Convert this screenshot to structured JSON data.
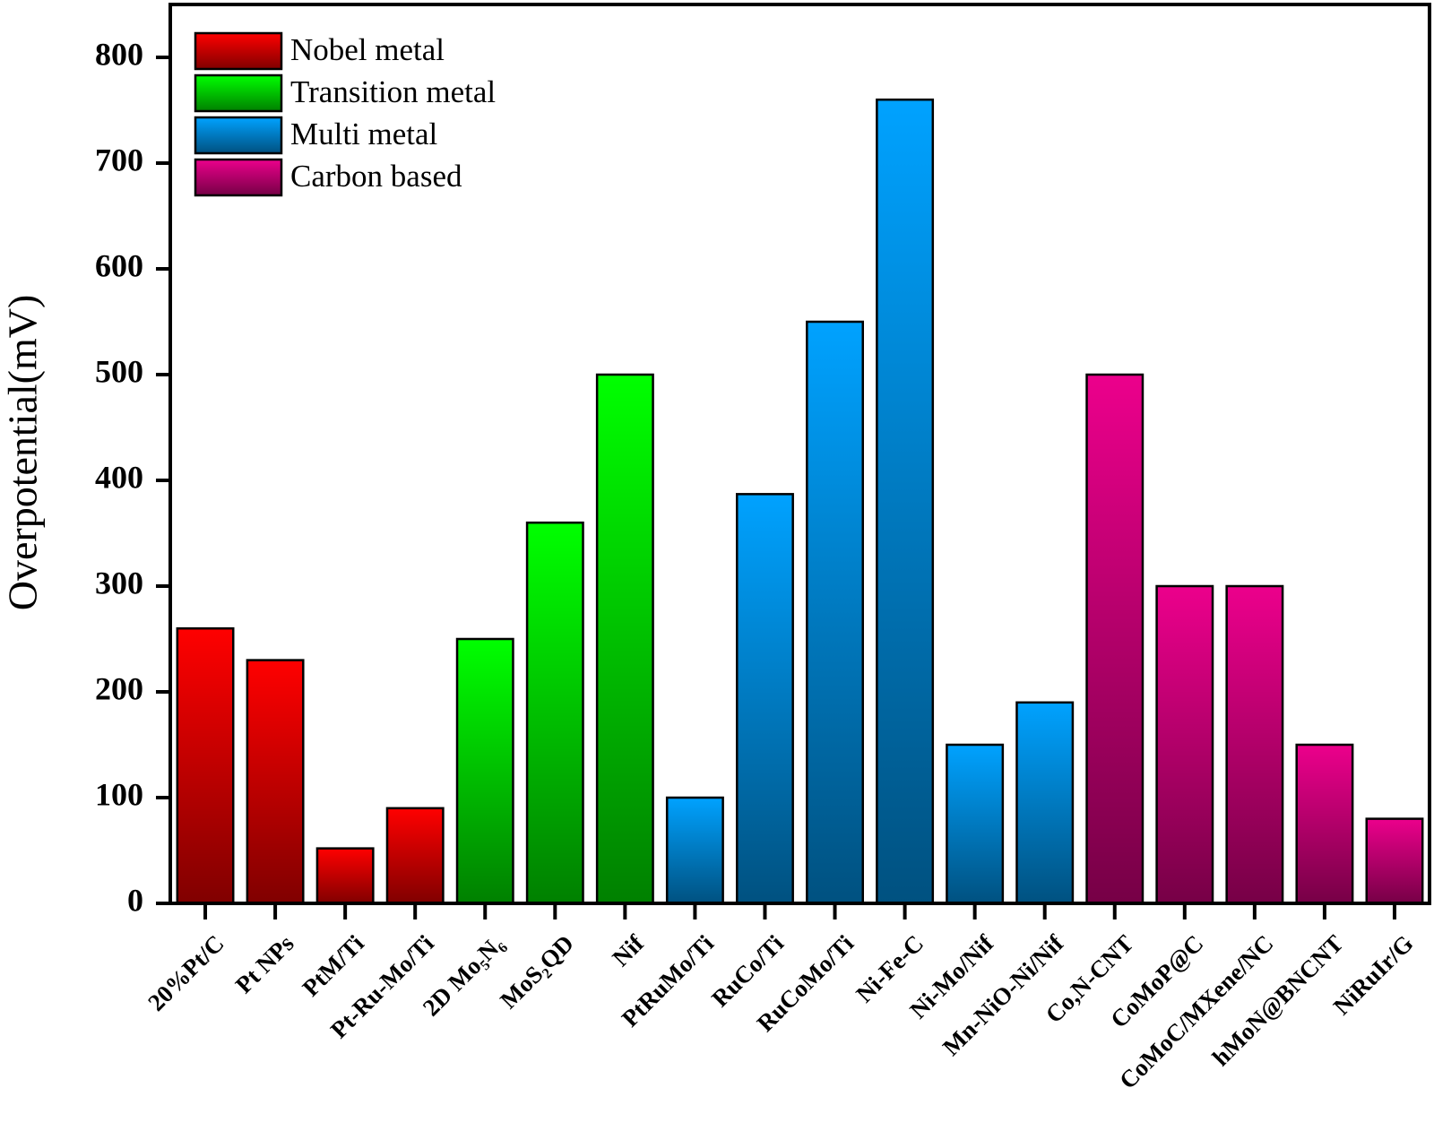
{
  "chart_data": {
    "type": "bar",
    "y_label": "Overpotential(mV)",
    "categories": [
      "20%Pt/C",
      "Pt NPs",
      "PtM/Ti",
      "Pt-Ru-Mo/Ti",
      "2D Mo₅N₆",
      "MoS₂QD",
      "Nif",
      "PtRuMo/Ti",
      "RuCo/Ti",
      "RuCoMo/Ti",
      "Ni-Fe-C",
      "Ni-Mo/Nif",
      "Mn-NiO-Ni/Nif",
      "Co,N-CNT",
      "CoMoP@C",
      "CoMoC/MXene/NC",
      "hMoN@BNCNT",
      "NiRuIr/G"
    ],
    "series": [
      {
        "name": "Nobel metal",
        "color": "#ff0000",
        "values": [
          260,
          230,
          52,
          90,
          null,
          null,
          null,
          null,
          null,
          null,
          null,
          null,
          null,
          null,
          null,
          null,
          null,
          null
        ]
      },
      {
        "name": "Transition metal",
        "color": "#00ff00",
        "values": [
          null,
          null,
          null,
          null,
          250,
          360,
          500,
          null,
          null,
          null,
          null,
          null,
          null,
          null,
          null,
          null,
          null,
          null
        ]
      },
      {
        "name": "Multi metal",
        "color": "#00a2ff",
        "values": [
          null,
          null,
          null,
          null,
          null,
          null,
          null,
          100,
          387,
          550,
          760,
          150,
          190,
          null,
          null,
          null,
          null,
          null
        ]
      },
      {
        "name": "Carbon based",
        "color": "#ec008c",
        "values": [
          null,
          null,
          null,
          null,
          null,
          null,
          null,
          null,
          null,
          null,
          null,
          null,
          null,
          500,
          300,
          300,
          150,
          80
        ]
      }
    ],
    "ylim": [
      0,
      850
    ],
    "yticks": [
      0,
      100,
      200,
      300,
      400,
      500,
      600,
      700,
      800
    ],
    "legend": "top-left"
  }
}
